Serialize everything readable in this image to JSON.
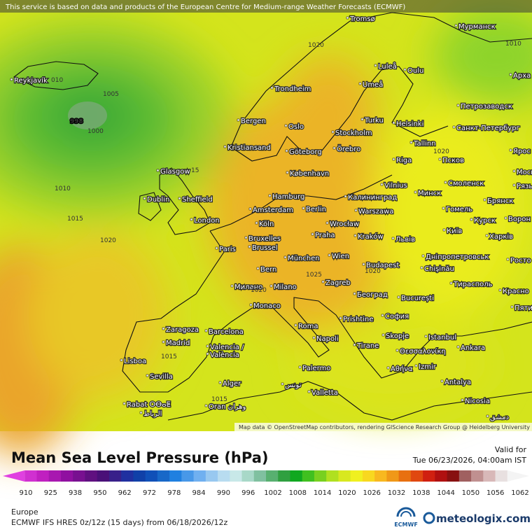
{
  "header": {
    "notice": "This service is based on data and products of the European Centre for Medium-range Weather Forecasts (ECMWF)"
  },
  "map": {
    "attribution": "Map data © OpenStreetMap contributors, rendering GIScience Research Group @ Heidelberg University",
    "cities": [
      "Reykjavík",
      "Tromsø",
      "Мурманск",
      "Luleå",
      "Oulu",
      "Арха",
      "Trondheim",
      "Umeå",
      "Bergen",
      "Oslo",
      "Stockholm",
      "Turku",
      "Helsinki",
      "Петрозаводск",
      "Санкт-Петербург",
      "Kristiansand",
      "Göteborg",
      "Örebro",
      "Tallinn",
      "Псков",
      "Ярос",
      "Glasgow",
      "København",
      "Riga",
      "Москва",
      "Dublin",
      "Sheffield",
      "Hamburg",
      "Vilnius",
      "Минск",
      "Смоленск",
      "Рязь",
      "Калининград",
      "Гомель",
      "Брянск",
      "Amsterdam",
      "Berlin",
      "Warszawa",
      "London",
      "Köln",
      "Wrocław",
      "Курск",
      "Ворон",
      "Київ",
      "Bruxelles",
      "Brussel",
      "Praha",
      "Kraków",
      "Львів",
      "Харків",
      "Paris",
      "München",
      "Wien",
      "Дніпропетровськ",
      "Росто",
      "Bern",
      "Budapest",
      "Chişinău",
      "Милано",
      "Milano",
      "Zagreb",
      "Тирасполь",
      "Красно",
      "Monaco",
      "Београд",
      "București",
      "Пяти",
      "Prishtine",
      "София",
      "Roma",
      "Zaragoza",
      "Barcelona",
      "Skopje",
      "Istanbul",
      "Madrid",
      "Napoli",
      "Tirane",
      "Θεσσαλονίκη",
      "Valencia /",
      "València",
      "Ankara",
      "Lisboa",
      "Palermo",
      "Αθήνα",
      "Izmir",
      "Sevilla",
      "Alger",
      "تونس",
      "Antalya",
      "Valletta",
      "Nicosia",
      "Rabat ⵔⴱⴰⵟ",
      "الرباط",
      "Oran وهران",
      "دمشق"
    ],
    "pressure_labels": [
      "010",
      "1005",
      "998",
      "1000",
      "1010",
      "1015",
      "1020",
      "1020",
      "1010",
      "1020",
      "1025",
      "1020",
      "1015",
      "1015",
      "1020",
      "15"
    ]
  },
  "legend": {
    "title": "Mean Sea Level Pressure (hPa)",
    "ticks": [
      910,
      925,
      938,
      950,
      962,
      972,
      978,
      984,
      990,
      996,
      1002,
      1008,
      1014,
      1020,
      1026,
      1032,
      1038,
      1044,
      1050,
      1056,
      1062
    ],
    "colors": [
      "#e040e0",
      "#d030d0",
      "#c020c0",
      "#a818b0",
      "#9010a0",
      "#781090",
      "#601080",
      "#4a1078",
      "#38208a",
      "#2030a0",
      "#1040a8",
      "#1050b8",
      "#1868c8",
      "#2080e0",
      "#4898e8",
      "#70b0f0",
      "#98c8f0",
      "#b8dcf0",
      "#c8e8e8",
      "#a8d8c8",
      "#80c0a0",
      "#58b070",
      "#30a040",
      "#10a820",
      "#40c020",
      "#78d020",
      "#b0e020",
      "#d8e820",
      "#f0f020",
      "#f8d820",
      "#f8b820",
      "#f09818",
      "#e87010",
      "#e04810",
      "#d02010",
      "#b01010",
      "#881010",
      "#a06060",
      "#c09090",
      "#d8b8b8",
      "#e8e0e0",
      "#f4f4f4"
    ]
  },
  "footer": {
    "valid_label": "Valid for",
    "valid_time": "Tue 06/23/2026, 04:00am IST",
    "region": "Europe",
    "model_run": "ECMWF IFS HRES 0z/12z (15 days) from 06/18/2026/12z",
    "ecmwf_logo": "ECMWF",
    "brand": "meteologix.com"
  }
}
